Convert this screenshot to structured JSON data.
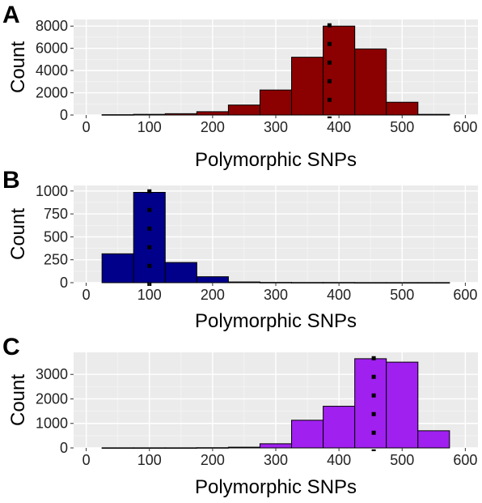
{
  "chart_data": [
    {
      "type": "bar",
      "panel_label": "A",
      "xlabel": "Polymorphic SNPs",
      "ylabel": "Count",
      "xlim": [
        -20,
        620
      ],
      "ylim": [
        0,
        8600
      ],
      "x_ticks": [
        0,
        100,
        200,
        300,
        400,
        500,
        600
      ],
      "y_ticks": [
        0,
        2000,
        4000,
        6000,
        8000
      ],
      "bin_width": 50,
      "bins": [
        {
          "x0": 25,
          "x1": 75,
          "value": 30
        },
        {
          "x0": 75,
          "x1": 125,
          "value": 60
        },
        {
          "x0": 125,
          "x1": 175,
          "value": 120
        },
        {
          "x0": 175,
          "x1": 225,
          "value": 300
        },
        {
          "x0": 225,
          "x1": 275,
          "value": 900
        },
        {
          "x0": 275,
          "x1": 325,
          "value": 2250
        },
        {
          "x0": 325,
          "x1": 375,
          "value": 5200
        },
        {
          "x0": 375,
          "x1": 425,
          "value": 8000
        },
        {
          "x0": 425,
          "x1": 475,
          "value": 5950
        },
        {
          "x0": 475,
          "x1": 525,
          "value": 1150
        },
        {
          "x0": 525,
          "x1": 575,
          "value": 60
        }
      ],
      "median_line_x": 385,
      "fill_color": "#8b0000",
      "panel_background": "#ebebeb",
      "grid": true
    },
    {
      "type": "bar",
      "panel_label": "B",
      "xlabel": "Polymorphic SNPs",
      "ylabel": "Count",
      "xlim": [
        -20,
        620
      ],
      "ylim": [
        0,
        1060
      ],
      "x_ticks": [
        0,
        100,
        200,
        300,
        400,
        500,
        600
      ],
      "y_ticks": [
        0,
        250,
        500,
        750,
        1000
      ],
      "bin_width": 50,
      "bins": [
        {
          "x0": 25,
          "x1": 75,
          "value": 315
        },
        {
          "x0": 75,
          "x1": 125,
          "value": 985
        },
        {
          "x0": 125,
          "x1": 175,
          "value": 220
        },
        {
          "x0": 175,
          "x1": 225,
          "value": 65
        },
        {
          "x0": 225,
          "x1": 275,
          "value": 8
        },
        {
          "x0": 275,
          "x1": 325,
          "value": 3
        },
        {
          "x0": 325,
          "x1": 375,
          "value": 2
        },
        {
          "x0": 375,
          "x1": 425,
          "value": 2
        },
        {
          "x0": 425,
          "x1": 475,
          "value": 1
        },
        {
          "x0": 475,
          "x1": 525,
          "value": 1
        },
        {
          "x0": 525,
          "x1": 575,
          "value": 1
        }
      ],
      "median_line_x": 100,
      "fill_color": "#00008b",
      "panel_background": "#ebebeb",
      "grid": true
    },
    {
      "type": "bar",
      "panel_label": "C",
      "xlabel": "Polymorphic SNPs",
      "ylabel": "Count",
      "xlim": [
        -20,
        620
      ],
      "ylim": [
        0,
        3900
      ],
      "x_ticks": [
        0,
        100,
        200,
        300,
        400,
        500,
        600
      ],
      "y_ticks": [
        0,
        1000,
        2000,
        3000
      ],
      "bin_width": 50,
      "bins": [
        {
          "x0": 25,
          "x1": 75,
          "value": 5
        },
        {
          "x0": 75,
          "x1": 125,
          "value": 5
        },
        {
          "x0": 125,
          "x1": 175,
          "value": 5
        },
        {
          "x0": 175,
          "x1": 225,
          "value": 10
        },
        {
          "x0": 225,
          "x1": 275,
          "value": 30
        },
        {
          "x0": 275,
          "x1": 325,
          "value": 170
        },
        {
          "x0": 325,
          "x1": 375,
          "value": 1130
        },
        {
          "x0": 375,
          "x1": 425,
          "value": 1700
        },
        {
          "x0": 425,
          "x1": 475,
          "value": 3640
        },
        {
          "x0": 475,
          "x1": 525,
          "value": 3500
        },
        {
          "x0": 525,
          "x1": 575,
          "value": 700
        }
      ],
      "median_line_x": 455,
      "fill_color": "#a020f0",
      "panel_background": "#ebebeb",
      "grid": true
    }
  ]
}
